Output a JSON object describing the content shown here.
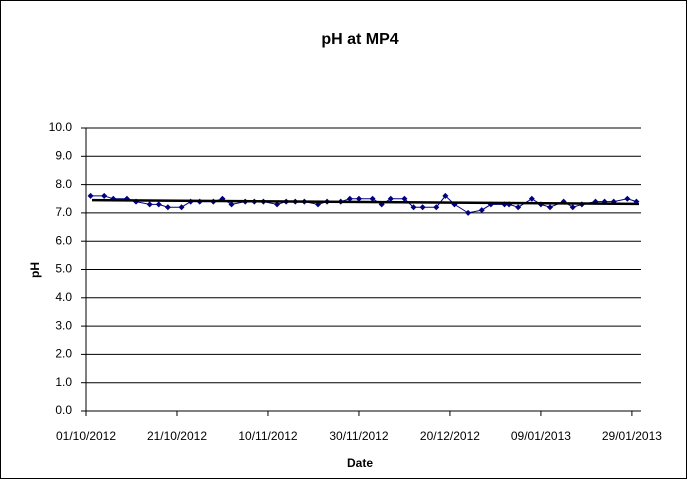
{
  "chart_data": {
    "type": "line",
    "title": "pH at MP4",
    "xlabel": "Date",
    "ylabel": "pH",
    "x": [
      "02/10/2012",
      "05/10/2012",
      "07/10/2012",
      "10/10/2012",
      "12/10/2012",
      "15/10/2012",
      "17/10/2012",
      "19/10/2012",
      "22/10/2012",
      "24/10/2012",
      "26/10/2012",
      "29/10/2012",
      "31/10/2012",
      "02/11/2012",
      "05/11/2012",
      "07/11/2012",
      "09/11/2012",
      "12/11/2012",
      "14/11/2012",
      "16/11/2012",
      "18/11/2012",
      "21/11/2012",
      "23/11/2012",
      "26/11/2012",
      "28/11/2012",
      "30/11/2012",
      "03/12/2012",
      "05/12/2012",
      "07/12/2012",
      "10/12/2012",
      "12/12/2012",
      "14/12/2012",
      "17/12/2012",
      "19/12/2012",
      "21/12/2012",
      "24/12/2012",
      "27/12/2012",
      "29/12/2012",
      "01/01/2013",
      "02/01/2013",
      "04/01/2013",
      "07/01/2013",
      "09/01/2013",
      "11/01/2013",
      "14/01/2013",
      "16/01/2013",
      "18/01/2013",
      "21/01/2013",
      "23/01/2013",
      "25/01/2013",
      "28/01/2013",
      "30/01/2013"
    ],
    "series": [
      {
        "color": "#000080",
        "values": [
          7.6,
          7.6,
          7.5,
          7.5,
          7.4,
          7.3,
          7.3,
          7.2,
          7.2,
          7.4,
          7.4,
          7.4,
          7.5,
          7.3,
          7.4,
          7.4,
          7.4,
          7.3,
          7.4,
          7.4,
          7.4,
          7.3,
          7.4,
          7.4,
          7.5,
          7.5,
          7.5,
          7.3,
          7.5,
          7.5,
          7.2,
          7.2,
          7.2,
          7.6,
          7.3,
          7.0,
          7.1,
          7.3,
          7.3,
          7.3,
          7.2,
          7.5,
          7.3,
          7.2,
          7.4,
          7.2,
          7.3,
          7.4,
          7.4,
          7.4,
          7.5,
          7.4
        ]
      }
    ],
    "trendline": {
      "color": "#000000",
      "values": [
        7.45,
        7.32
      ]
    },
    "xlim": [
      "01/10/2012",
      "31/01/2013"
    ],
    "xticks": [
      "01/10/2012",
      "21/10/2012",
      "10/11/2012",
      "30/11/2012",
      "20/12/2012",
      "09/01/2013",
      "29/01/2013"
    ],
    "ylim": [
      0,
      10
    ],
    "yticks": [
      {
        "value": 0,
        "label": "0.0"
      },
      {
        "value": 1,
        "label": "1.0"
      },
      {
        "value": 2,
        "label": "2.0"
      },
      {
        "value": 3,
        "label": "3.0"
      },
      {
        "value": 4,
        "label": "4.0"
      },
      {
        "value": 5,
        "label": "5.0"
      },
      {
        "value": 6,
        "label": "6.0"
      },
      {
        "value": 7,
        "label": "7.0"
      },
      {
        "value": 8,
        "label": "8.0"
      },
      {
        "value": 9,
        "label": "9.0"
      },
      {
        "value": 10,
        "label": "10.0"
      }
    ],
    "grid": true
  }
}
